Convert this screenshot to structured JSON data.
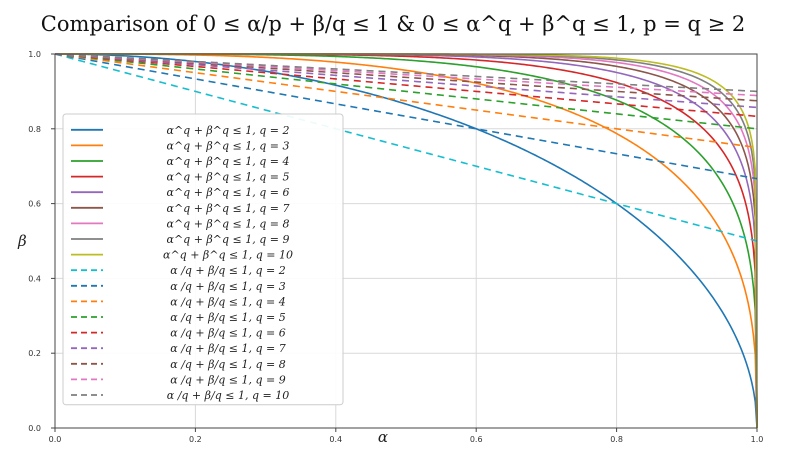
{
  "chart_data": {
    "type": "line",
    "title": "Comparison of 0 ≤ α/p + β/q ≤ 1 & 0 ≤ α^q + β^q ≤ 1, p = q ≥ 2",
    "xlabel": "α",
    "ylabel": "β",
    "xlim": [
      0.0,
      1.0
    ],
    "ylim": [
      0.0,
      1.0
    ],
    "xticks": [
      "0.0",
      "0.2",
      "0.4",
      "0.6",
      "0.8",
      "1.0"
    ],
    "yticks": [
      "0.0",
      "0.2",
      "0.4",
      "0.6",
      "0.8",
      "1.0"
    ],
    "grid": true,
    "legend_position": "left",
    "series": [
      {
        "name": "α^q + β^q ≤ 1, q = 2",
        "q": 2,
        "kind": "power",
        "style": "solid",
        "color": "#1f77b4"
      },
      {
        "name": "α^q + β^q ≤ 1, q = 3",
        "q": 3,
        "kind": "power",
        "style": "solid",
        "color": "#ff7f0e"
      },
      {
        "name": "α^q + β^q ≤ 1, q = 4",
        "q": 4,
        "kind": "power",
        "style": "solid",
        "color": "#2ca02c"
      },
      {
        "name": "α^q + β^q ≤ 1, q = 5",
        "q": 5,
        "kind": "power",
        "style": "solid",
        "color": "#d62728"
      },
      {
        "name": "α^q + β^q ≤ 1, q = 6",
        "q": 6,
        "kind": "power",
        "style": "solid",
        "color": "#9467bd"
      },
      {
        "name": "α^q + β^q ≤ 1, q = 7",
        "q": 7,
        "kind": "power",
        "style": "solid",
        "color": "#8c564b"
      },
      {
        "name": "α^q + β^q ≤ 1, q = 8",
        "q": 8,
        "kind": "power",
        "style": "solid",
        "color": "#e377c2"
      },
      {
        "name": "α^q + β^q ≤ 1, q = 9",
        "q": 9,
        "kind": "power",
        "style": "solid",
        "color": "#7f7f7f"
      },
      {
        "name": "α^q + β^q ≤ 1, q = 10",
        "q": 10,
        "kind": "power",
        "style": "solid",
        "color": "#bcbd22"
      },
      {
        "name": "α /q + β/q ≤ 1, q = 2",
        "q": 2,
        "kind": "linear",
        "style": "dashed",
        "color": "#17becf"
      },
      {
        "name": "α /q + β/q ≤ 1, q = 3",
        "q": 3,
        "kind": "linear",
        "style": "dashed",
        "color": "#1f77b4"
      },
      {
        "name": "α /q + β/q ≤ 1, q = 4",
        "q": 4,
        "kind": "linear",
        "style": "dashed",
        "color": "#ff7f0e"
      },
      {
        "name": "α /q + β/q ≤ 1, q = 5",
        "q": 5,
        "kind": "linear",
        "style": "dashed",
        "color": "#2ca02c"
      },
      {
        "name": "α /q + β/q ≤ 1, q = 6",
        "q": 6,
        "kind": "linear",
        "style": "dashed",
        "color": "#d62728"
      },
      {
        "name": "α /q + β/q ≤ 1, q = 7",
        "q": 7,
        "kind": "linear",
        "style": "dashed",
        "color": "#9467bd"
      },
      {
        "name": "α /q + β/q ≤ 1, q = 8",
        "q": 8,
        "kind": "linear",
        "style": "dashed",
        "color": "#8c564b"
      },
      {
        "name": "α /q + β/q ≤ 1, q = 9",
        "q": 9,
        "kind": "linear",
        "style": "dashed",
        "color": "#e377c2"
      },
      {
        "name": "α /q + β/q ≤ 1, q = 10",
        "q": 10,
        "kind": "linear",
        "style": "dashed",
        "color": "#7f7f7f"
      }
    ]
  }
}
